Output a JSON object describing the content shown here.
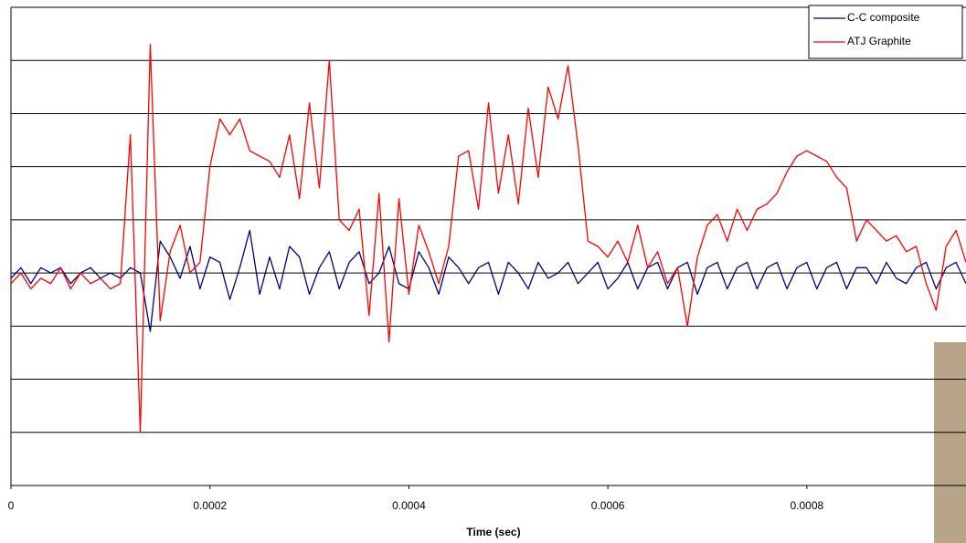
{
  "chart_data": {
    "type": "line",
    "x_label": "Time (sec)",
    "xlim": [
      0,
      0.00096
    ],
    "xticks": [
      0,
      0.0002,
      0.0004,
      0.0006,
      0.0008
    ],
    "ylim": [
      -4,
      5
    ],
    "yticks": [
      -4,
      -3,
      -2,
      -1,
      0,
      1,
      2,
      3,
      4,
      5
    ],
    "grid": true,
    "legend": "top-right",
    "x": [
      0,
      1e-05,
      2e-05,
      3e-05,
      4e-05,
      5e-05,
      6e-05,
      7e-05,
      8e-05,
      9e-05,
      0.0001,
      0.00011,
      0.00012,
      0.00013,
      0.00014,
      0.00015,
      0.00016,
      0.00017,
      0.00018,
      0.00019,
      0.0002,
      0.00021,
      0.00022,
      0.00023,
      0.00024,
      0.00025,
      0.00026,
      0.00027,
      0.00028,
      0.00029,
      0.0003,
      0.00031,
      0.00032,
      0.00033,
      0.00034,
      0.00035,
      0.00036,
      0.00037,
      0.00038,
      0.00039,
      0.0004,
      0.00041,
      0.00042,
      0.00043,
      0.00044,
      0.00045,
      0.00046,
      0.00047,
      0.00048,
      0.00049,
      0.0005,
      0.00051,
      0.00052,
      0.00053,
      0.00054,
      0.00055,
      0.00056,
      0.00057,
      0.00058,
      0.00059,
      0.0006,
      0.00061,
      0.00062,
      0.00063,
      0.00064,
      0.00065,
      0.00066,
      0.00067,
      0.00068,
      0.00069,
      0.0007,
      0.00071,
      0.00072,
      0.00073,
      0.00074,
      0.00075,
      0.00076,
      0.00077,
      0.00078,
      0.00079,
      0.0008,
      0.00081,
      0.00082,
      0.00083,
      0.00084,
      0.00085,
      0.00086,
      0.00087,
      0.00088,
      0.00089,
      0.0009,
      0.00091,
      0.00092,
      0.00093,
      0.00094,
      0.00095,
      0.00096
    ],
    "series": [
      {
        "name": "C-C composite",
        "color": "#000080",
        "values": [
          -0.1,
          0.1,
          -0.2,
          0.1,
          0,
          0.1,
          -0.2,
          0,
          0.1,
          -0.1,
          0,
          -0.1,
          0.1,
          0,
          -1.1,
          0.6,
          0.3,
          -0.1,
          0.5,
          -0.3,
          0.3,
          0.2,
          -0.5,
          0.1,
          0.8,
          -0.4,
          0.3,
          -0.3,
          0.5,
          0.3,
          -0.4,
          0.1,
          0.4,
          -0.3,
          0.2,
          0.4,
          -0.2,
          0,
          0.5,
          -0.2,
          -0.3,
          0.4,
          0.1,
          -0.4,
          0.3,
          0.1,
          -0.2,
          0.1,
          0.2,
          -0.4,
          0.2,
          0,
          -0.3,
          0.2,
          -0.1,
          0,
          0.2,
          -0.2,
          0,
          0.2,
          -0.3,
          -0.1,
          0.2,
          -0.3,
          0.1,
          0.2,
          -0.3,
          0.1,
          0.2,
          -0.4,
          0.1,
          0.2,
          -0.3,
          0.1,
          0.2,
          -0.3,
          0.1,
          0.2,
          -0.3,
          0.1,
          0.2,
          -0.3,
          0.1,
          0.2,
          -0.3,
          0.1,
          0.1,
          -0.2,
          0.2,
          -0.1,
          -0.2,
          0.1,
          0.2,
          -0.3,
          0.1,
          0.2,
          -0.2
        ]
      },
      {
        "name": "ATJ Graphite",
        "color": "#ff0000",
        "values": [
          -0.2,
          0,
          -0.3,
          -0.1,
          -0.2,
          0.1,
          -0.3,
          0,
          -0.2,
          -0.1,
          -0.3,
          -0.2,
          2.6,
          -3,
          4.3,
          -0.9,
          0.4,
          0.9,
          0,
          0.2,
          2,
          2.9,
          2.6,
          2.9,
          2.3,
          2.2,
          2.1,
          1.8,
          2.6,
          1.4,
          3.2,
          1.6,
          4,
          1,
          0.8,
          1.2,
          -0.8,
          1.5,
          -1.3,
          1.4,
          -0.4,
          0.9,
          0.4,
          -0.2,
          0.5,
          2.2,
          2.3,
          1.2,
          3.2,
          1.5,
          2.6,
          1.3,
          3.1,
          1.8,
          3.5,
          2.9,
          3.9,
          2.4,
          0.6,
          0.5,
          0.3,
          0.6,
          0.2,
          0.9,
          0.1,
          0.4,
          -0.2,
          0.1,
          -1,
          0.3,
          0.9,
          1.1,
          0.6,
          1.2,
          0.8,
          1.2,
          1.3,
          1.5,
          1.9,
          2.2,
          2.3,
          2.2,
          2.1,
          1.8,
          1.6,
          0.6,
          1,
          0.8,
          0.6,
          0.7,
          0.4,
          0.5,
          -0.2,
          -0.7,
          0.5,
          0.8,
          0.2
        ]
      }
    ]
  }
}
